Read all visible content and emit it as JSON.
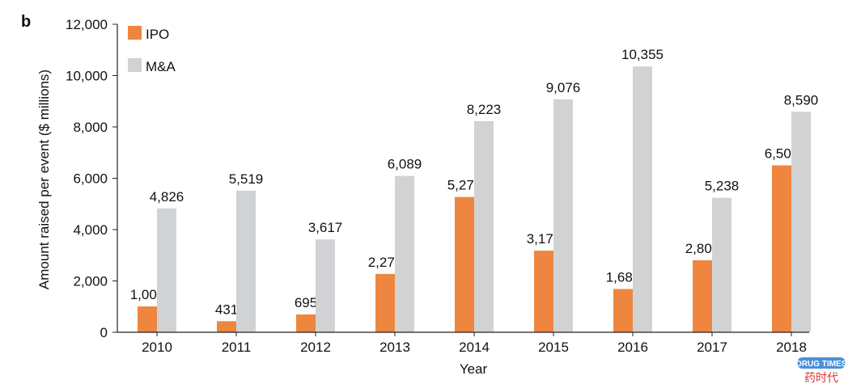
{
  "panel_label": "b",
  "chart_data": {
    "type": "bar",
    "title": "",
    "xlabel": "Year",
    "ylabel": "Amount raised per event ($ millions)",
    "categories": [
      "2010",
      "2011",
      "2012",
      "2013",
      "2014",
      "2015",
      "2016",
      "2017",
      "2018"
    ],
    "series": [
      {
        "name": "IPO",
        "color": "#EE8640",
        "values": [
          1007,
          431,
          695,
          2272,
          5270,
          3179,
          1686,
          2806,
          6502
        ],
        "labels": [
          "1,007",
          "431",
          "695",
          "2,272",
          "5,270",
          "3,179",
          "1,686",
          "2,806",
          "6,502"
        ]
      },
      {
        "name": "M&A",
        "color": "#D1D2D4",
        "values": [
          4826,
          5519,
          3617,
          6089,
          8223,
          9076,
          10355,
          5238,
          8590
        ],
        "labels": [
          "4,826",
          "5,519",
          "3,617",
          "6,089",
          "8,223",
          "9,076",
          "10,355",
          "5,238",
          "8,590"
        ]
      }
    ],
    "ylim": [
      0,
      12000
    ],
    "yticks": [
      "0",
      "2,000",
      "4,000",
      "6,000",
      "8,000",
      "10,000",
      "12,000"
    ],
    "grid": false,
    "legend": "top-left"
  },
  "watermark": {
    "text_en": "DRUG TIMES",
    "text_cn": "药时代"
  }
}
